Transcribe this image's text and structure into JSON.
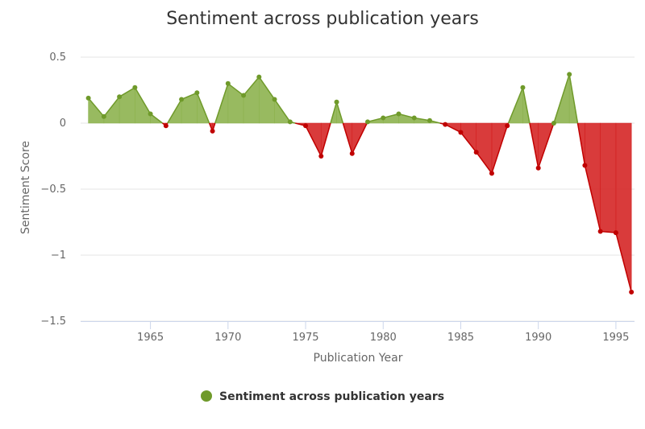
{
  "chart_data": {
    "type": "area",
    "title": "Sentiment across publication years",
    "xlabel": "Publication Year",
    "ylabel": "Sentiment Score",
    "xlim": [
      1960.5,
      1996.2
    ],
    "ylim": [
      -1.5,
      0.5
    ],
    "x_ticks": [
      1965,
      1970,
      1975,
      1980,
      1985,
      1990,
      1995
    ],
    "x_tick_labels": [
      "1965",
      "1970",
      "1975",
      "1980",
      "1985",
      "1990",
      "1995"
    ],
    "y_ticks": [
      0.5,
      0,
      -0.5,
      -1,
      -1.5
    ],
    "y_tick_labels": [
      "0.5",
      "0",
      "−0.5",
      "−1",
      "−1.5"
    ],
    "grid": true,
    "legend": "bottom-center",
    "positive_color": "#8db34f",
    "positive_line_color": "#6f9a2a",
    "negative_color": "#d42020",
    "negative_line_color": "#c00000",
    "series": [
      {
        "name": "Sentiment across publication years",
        "points": [
          [
            1961,
            0.19
          ],
          [
            1962,
            0.05
          ],
          [
            1963,
            0.2
          ],
          [
            1964,
            0.27
          ],
          [
            1965,
            0.07
          ],
          [
            1966,
            -0.02
          ],
          [
            1967,
            0.18
          ],
          [
            1968,
            0.23
          ],
          [
            1969,
            -0.06
          ],
          [
            1970,
            0.3
          ],
          [
            1971,
            0.21
          ],
          [
            1972,
            0.35
          ],
          [
            1973,
            0.18
          ],
          [
            1974,
            0.01
          ],
          [
            1975,
            -0.02
          ],
          [
            1976,
            -0.25
          ],
          [
            1977,
            0.16
          ],
          [
            1978,
            -0.23
          ],
          [
            1979,
            0.01
          ],
          [
            1980,
            0.04
          ],
          [
            1981,
            0.07
          ],
          [
            1982,
            0.04
          ],
          [
            1983,
            0.02
          ],
          [
            1984,
            -0.01
          ],
          [
            1985,
            -0.07
          ],
          [
            1986,
            -0.22
          ],
          [
            1987,
            -0.38
          ],
          [
            1988,
            -0.02
          ],
          [
            1989,
            0.27
          ],
          [
            1990,
            -0.34
          ],
          [
            1991,
            0.0
          ],
          [
            1992,
            0.37
          ],
          [
            1993,
            -0.32
          ],
          [
            1994,
            -0.82
          ],
          [
            1995,
            -0.83
          ],
          [
            1996,
            -1.28
          ]
        ]
      }
    ]
  }
}
